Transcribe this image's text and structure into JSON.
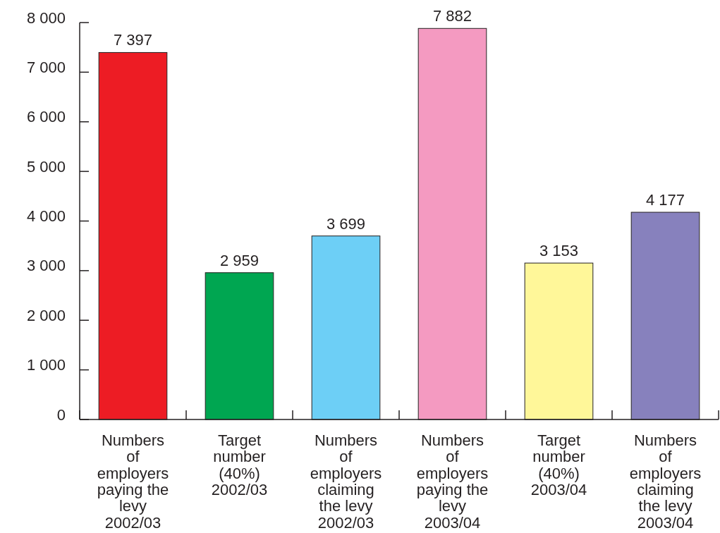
{
  "chart_data": {
    "type": "bar",
    "categories": [
      "Numbers of employers paying the levy 2002/03",
      "Target number (40%) 2002/03",
      "Numbers of employers claiming the levy 2002/03",
      "Numbers of employers paying the levy 2003/04",
      "Target number (40%) 2003/04",
      "Numbers of employers claiming the levy 2003/04"
    ],
    "values": [
      7397,
      2959,
      3699,
      7882,
      3153,
      4177
    ],
    "colors": [
      "#ed1c24",
      "#00a651",
      "#6dcff6",
      "#f49ac1",
      "#fff799",
      "#8781bd"
    ],
    "value_labels": [
      "7 397",
      "2 959",
      "3 699",
      "7 882",
      "3 153",
      "4 177"
    ],
    "ylim": [
      0,
      8000
    ],
    "yticks": [
      0,
      {
        "value": 1000,
        "label": "1 000"
      },
      {
        "value": 2000,
        "label": "2 000"
      },
      {
        "value": 3000,
        "label": "3 000"
      },
      {
        "value": 4000,
        "label": "4 000"
      },
      {
        "value": 5000,
        "label": "5 000"
      },
      {
        "value": 6000,
        "label": "6 000"
      },
      {
        "value": 7000,
        "label": "7 000"
      },
      {
        "value": 8000,
        "label": "8 000"
      }
    ]
  }
}
